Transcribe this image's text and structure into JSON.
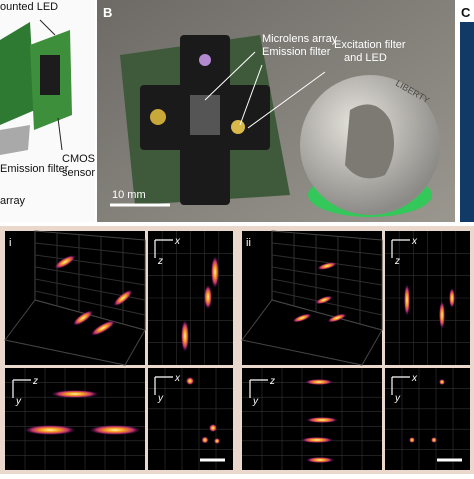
{
  "panel_a": {
    "labels": [
      "ounted LED",
      "CMOS",
      "sensor",
      "Emission filter",
      "array"
    ]
  },
  "panel_b": {
    "letter": "B",
    "labels": [
      "Microlens array",
      "Emission filter",
      "Excitation filter",
      "and LED"
    ],
    "scale_bar": "10 mm",
    "coin": "LIBERTY"
  },
  "panel_c": {
    "letter": "C"
  },
  "panel_d": {
    "panels": [
      {
        "label": "i",
        "top_right_axes": [
          "z",
          "x"
        ],
        "bottom_left_axes": [
          "z",
          "y"
        ],
        "bottom_right_axes": [
          "x",
          "y"
        ]
      },
      {
        "label": "ii",
        "top_right_axes": [
          "z",
          "x"
        ],
        "bottom_left_axes": [
          "z",
          "y"
        ],
        "bottom_right_axes": [
          "x",
          "y"
        ]
      }
    ]
  }
}
